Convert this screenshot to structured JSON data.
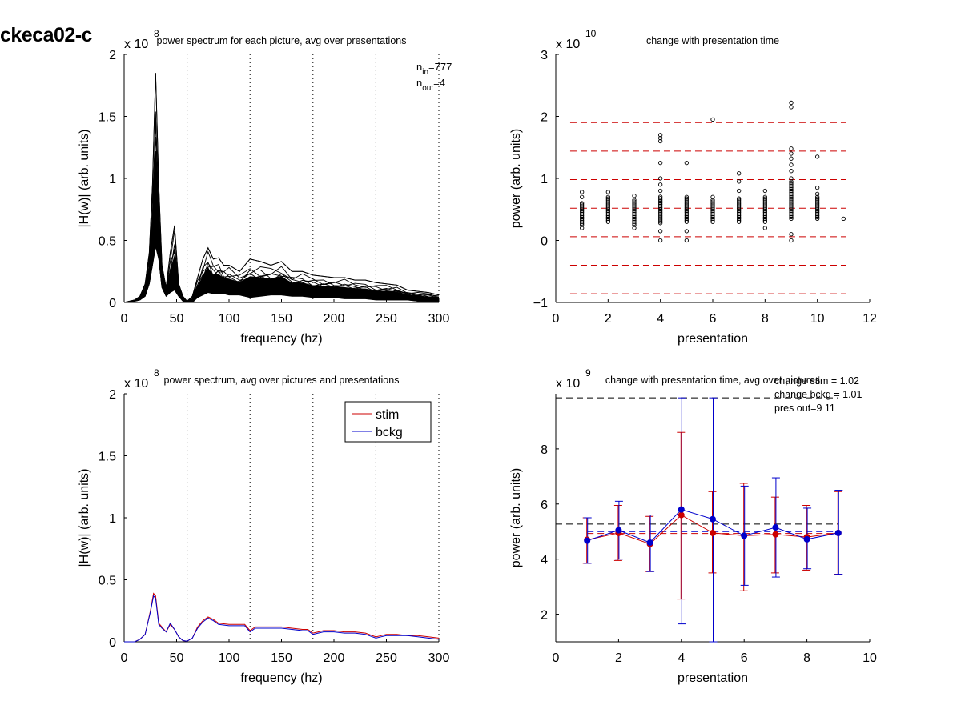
{
  "figure_title": "ckeca02-c",
  "chart_data": [
    {
      "id": "tl",
      "type": "line",
      "title": "power spectrum for each picture, avg over presentations",
      "xlabel": "frequency (hz)",
      "ylabel": "|H(w)| (arb. units)",
      "exponent_label": "x 10",
      "exponent": "8",
      "xlim": [
        0,
        300
      ],
      "ylim": [
        0,
        2
      ],
      "xticks": [
        0,
        50,
        100,
        150,
        200,
        250,
        300
      ],
      "yticks": [
        0,
        0.5,
        1,
        1.5,
        2
      ],
      "ytick_labels": [
        "0",
        "0.5",
        "1",
        "1.5",
        "2"
      ],
      "vlines_dotted": [
        60,
        120,
        180,
        240,
        300
      ],
      "annotations": {
        "n_in_prefix": "n",
        "n_in_sub": "in",
        "n_in_value": "=777",
        "n_out_prefix": "n",
        "n_out_sub": "out",
        "n_out_value": "=4"
      },
      "envelope": {
        "x": [
          0,
          10,
          15,
          20,
          24,
          27,
          30,
          33,
          36,
          40,
          44,
          48,
          52,
          56,
          60,
          65,
          70,
          75,
          80,
          85,
          90,
          95,
          100,
          110,
          120,
          130,
          140,
          150,
          160,
          170,
          180,
          190,
          200,
          210,
          220,
          230,
          240,
          250,
          260,
          270,
          280,
          290,
          300
        ],
        "upper": [
          0.0,
          0.02,
          0.05,
          0.15,
          0.4,
          0.95,
          1.85,
          0.95,
          0.3,
          0.12,
          0.4,
          0.62,
          0.15,
          0.05,
          0.01,
          0.05,
          0.2,
          0.35,
          0.44,
          0.35,
          0.36,
          0.3,
          0.3,
          0.25,
          0.35,
          0.33,
          0.3,
          0.33,
          0.25,
          0.25,
          0.22,
          0.21,
          0.2,
          0.2,
          0.18,
          0.18,
          0.16,
          0.15,
          0.14,
          0.1,
          0.09,
          0.08,
          0.06
        ],
        "lower": [
          0.0,
          0.01,
          0.02,
          0.05,
          0.15,
          0.3,
          0.45,
          0.35,
          0.12,
          0.05,
          0.08,
          0.1,
          0.05,
          0.01,
          0.0,
          0.0,
          0.04,
          0.06,
          0.08,
          0.07,
          0.07,
          0.07,
          0.06,
          0.06,
          0.04,
          0.05,
          0.06,
          0.06,
          0.05,
          0.05,
          0.04,
          0.04,
          0.04,
          0.03,
          0.03,
          0.03,
          0.02,
          0.02,
          0.02,
          0.02,
          0.01,
          0.01,
          0.01
        ]
      }
    },
    {
      "id": "tr",
      "type": "scatter",
      "title": "change with presentation time",
      "xlabel": "presentation",
      "ylabel": "power (arb. units)",
      "exponent_label": "x 10",
      "exponent": "10",
      "xlim": [
        0,
        12
      ],
      "ylim": [
        -1,
        3
      ],
      "xticks": [
        0,
        2,
        4,
        6,
        8,
        10,
        12
      ],
      "yticks": [
        -1,
        0,
        1,
        2,
        3
      ],
      "ytick_labels": [
        "−1",
        "0",
        "1",
        "2",
        "3"
      ],
      "hlines_dashed_red": [
        1.9,
        1.44,
        0.98,
        0.52,
        0.06,
        -0.4,
        -0.86
      ],
      "columns": [
        {
          "x": 1,
          "min": 0.25,
          "max": 0.62,
          "extra": [
            0.78,
            0.7,
            0.2
          ]
        },
        {
          "x": 2,
          "min": 0.3,
          "max": 0.72,
          "extra": [
            0.78
          ]
        },
        {
          "x": 3,
          "min": 0.25,
          "max": 0.65,
          "extra": [
            0.72,
            0.2
          ]
        },
        {
          "x": 4,
          "min": 0.28,
          "max": 0.72,
          "extra": [
            1.7,
            1.65,
            1.6,
            1.25,
            1.0,
            0.9,
            0.8,
            0.15,
            0.0
          ]
        },
        {
          "x": 5,
          "min": 0.3,
          "max": 0.72,
          "extra": [
            1.25,
            0.15,
            0.0
          ]
        },
        {
          "x": 6,
          "min": 0.3,
          "max": 0.65,
          "extra": [
            1.95,
            0.7
          ]
        },
        {
          "x": 7,
          "min": 0.3,
          "max": 0.68,
          "extra": [
            1.08,
            0.95,
            0.8
          ]
        },
        {
          "x": 8,
          "min": 0.3,
          "max": 0.72,
          "extra": [
            0.8,
            0.2
          ]
        },
        {
          "x": 9,
          "min": 0.35,
          "max": 0.95,
          "extra": [
            2.22,
            2.15,
            1.48,
            1.4,
            1.32,
            1.22,
            1.12,
            1.0,
            0.1,
            0.0
          ]
        },
        {
          "x": 10,
          "min": 0.35,
          "max": 0.7,
          "extra": [
            1.35,
            0.85,
            0.75
          ]
        },
        {
          "x": 11,
          "min": 0.35,
          "max": 0.35,
          "extra": []
        }
      ]
    },
    {
      "id": "bl",
      "type": "line",
      "title": "power spectrum, avg over pictures and presentations",
      "xlabel": "frequency (hz)",
      "ylabel": "|H(w)| (arb. units)",
      "exponent_label": "x 10",
      "exponent": "8",
      "xlim": [
        0,
        300
      ],
      "ylim": [
        0,
        2
      ],
      "xticks": [
        0,
        50,
        100,
        150,
        200,
        250,
        300
      ],
      "yticks": [
        0,
        0.5,
        1,
        1.5,
        2
      ],
      "ytick_labels": [
        "0",
        "0.5",
        "1",
        "1.5",
        "2"
      ],
      "vlines_dotted": [
        60,
        120,
        180,
        240,
        300
      ],
      "legend": {
        "position": "top-right",
        "entries": [
          "stim",
          "bckg"
        ]
      },
      "series": [
        {
          "name": "stim",
          "color": "#cc0000",
          "x": [
            0,
            10,
            15,
            20,
            25,
            28,
            30,
            33,
            36,
            40,
            44,
            48,
            52,
            56,
            60,
            65,
            70,
            75,
            80,
            85,
            90,
            100,
            110,
            115,
            120,
            125,
            130,
            140,
            150,
            160,
            170,
            175,
            180,
            185,
            190,
            200,
            210,
            220,
            230,
            240,
            245,
            250,
            260,
            270,
            280,
            290,
            300
          ],
          "y": [
            0.0,
            0.0,
            0.02,
            0.06,
            0.25,
            0.39,
            0.37,
            0.15,
            0.12,
            0.08,
            0.14,
            0.1,
            0.04,
            0.01,
            0.005,
            0.03,
            0.12,
            0.17,
            0.2,
            0.18,
            0.15,
            0.14,
            0.14,
            0.14,
            0.09,
            0.12,
            0.12,
            0.12,
            0.12,
            0.11,
            0.1,
            0.1,
            0.07,
            0.08,
            0.09,
            0.09,
            0.08,
            0.08,
            0.07,
            0.04,
            0.05,
            0.06,
            0.06,
            0.05,
            0.05,
            0.04,
            0.03
          ]
        },
        {
          "name": "bckg",
          "color": "#0000cc",
          "x": [
            0,
            10,
            15,
            20,
            25,
            28,
            30,
            33,
            36,
            40,
            44,
            48,
            52,
            56,
            60,
            65,
            70,
            75,
            80,
            85,
            90,
            100,
            110,
            115,
            120,
            125,
            130,
            140,
            150,
            160,
            170,
            175,
            180,
            185,
            190,
            200,
            210,
            220,
            230,
            240,
            245,
            250,
            260,
            270,
            280,
            290,
            300
          ],
          "y": [
            0.0,
            0.0,
            0.02,
            0.06,
            0.24,
            0.37,
            0.35,
            0.14,
            0.11,
            0.08,
            0.15,
            0.1,
            0.04,
            0.01,
            0.005,
            0.03,
            0.11,
            0.16,
            0.19,
            0.17,
            0.14,
            0.13,
            0.13,
            0.13,
            0.08,
            0.11,
            0.11,
            0.11,
            0.11,
            0.1,
            0.09,
            0.09,
            0.06,
            0.07,
            0.08,
            0.08,
            0.07,
            0.07,
            0.06,
            0.03,
            0.04,
            0.05,
            0.05,
            0.05,
            0.04,
            0.03,
            0.02
          ]
        }
      ]
    },
    {
      "id": "br",
      "type": "line",
      "title": "change with presentation time, avg over pictures",
      "xlabel": "presentation",
      "ylabel": "power (arb. units)",
      "exponent_label": "x 10",
      "exponent": "9",
      "xlim": [
        0,
        10
      ],
      "ylim": [
        1,
        10
      ],
      "xticks": [
        0,
        2,
        4,
        6,
        8,
        10
      ],
      "yticks": [
        2,
        4,
        6,
        8
      ],
      "ytick_labels": [
        "2",
        "4",
        "6",
        "8"
      ],
      "annotations": [
        "change stim = 1.02",
        "change bckg = 1.01",
        "pres out=9 11"
      ],
      "hlines_dashed": [
        {
          "y": 9.85,
          "color": "#000000",
          "x0": 0,
          "x1": 9
        },
        {
          "y": 5.27,
          "color": "#000000",
          "x0": 0,
          "x1": 9
        },
        {
          "y": 5.0,
          "color": "#0000cc",
          "x0": 1,
          "x1": 9
        },
        {
          "y": 4.93,
          "color": "#cc0000",
          "x0": 1,
          "x1": 9
        }
      ],
      "series": [
        {
          "name": "stim",
          "color": "#cc0000",
          "x": [
            1,
            2,
            3,
            4,
            5,
            6,
            7,
            8,
            9
          ],
          "y": [
            4.7,
            4.95,
            4.55,
            5.6,
            4.95,
            4.85,
            4.9,
            4.8,
            4.95
          ],
          "err_low": [
            3.85,
            3.95,
            3.55,
            2.55,
            3.5,
            2.85,
            3.5,
            3.6,
            3.45
          ],
          "err_high": [
            5.5,
            5.95,
            5.55,
            8.6,
            6.45,
            6.75,
            6.25,
            5.95,
            6.45
          ]
        },
        {
          "name": "bckg",
          "color": "#0000cc",
          "x": [
            1,
            2,
            3,
            4,
            5,
            6,
            7,
            8,
            9
          ],
          "y": [
            4.67,
            5.05,
            4.6,
            5.8,
            5.45,
            4.85,
            5.15,
            4.72,
            4.95
          ],
          "err_low": [
            3.85,
            4.0,
            3.55,
            1.65,
            1.0,
            3.05,
            3.35,
            3.65,
            3.45
          ],
          "err_high": [
            5.5,
            6.1,
            5.6,
            9.85,
            9.85,
            6.65,
            6.95,
            5.85,
            6.5
          ]
        }
      ]
    }
  ]
}
